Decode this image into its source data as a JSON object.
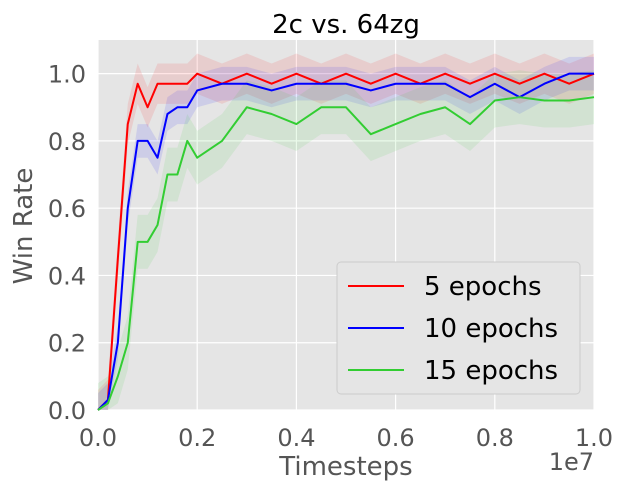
{
  "chart_data": {
    "type": "line",
    "title": "2c vs. 64zg",
    "xlabel": "Timesteps",
    "ylabel": "Win Rate",
    "x_offset_label": "1e7",
    "xlim": [
      0.0,
      1.0
    ],
    "ylim": [
      0.0,
      1.1
    ],
    "xticks": [
      "0.0",
      "0.2",
      "0.4",
      "0.6",
      "0.8",
      "1.0"
    ],
    "yticks": [
      "0.0",
      "0.2",
      "0.4",
      "0.6",
      "0.8",
      "1.0"
    ],
    "grid": true,
    "legend_position": "lower-right",
    "series": [
      {
        "name": "5 epochs",
        "color": "#ff0000",
        "x": [
          0.0,
          0.02,
          0.04,
          0.06,
          0.08,
          0.1,
          0.12,
          0.14,
          0.16,
          0.18,
          0.2,
          0.25,
          0.3,
          0.35,
          0.4,
          0.45,
          0.5,
          0.55,
          0.6,
          0.65,
          0.7,
          0.75,
          0.8,
          0.85,
          0.9,
          0.95,
          1.0
        ],
        "values": [
          0.0,
          0.03,
          0.45,
          0.85,
          0.97,
          0.9,
          0.97,
          0.97,
          0.97,
          0.97,
          1.0,
          0.97,
          1.0,
          0.97,
          1.0,
          0.97,
          1.0,
          0.97,
          1.0,
          0.97,
          1.0,
          0.97,
          1.0,
          0.97,
          1.0,
          0.97,
          1.0
        ]
      },
      {
        "name": "10 epochs",
        "color": "#0000ff",
        "x": [
          0.0,
          0.02,
          0.04,
          0.06,
          0.08,
          0.1,
          0.12,
          0.14,
          0.16,
          0.18,
          0.2,
          0.25,
          0.3,
          0.35,
          0.4,
          0.45,
          0.5,
          0.55,
          0.6,
          0.65,
          0.7,
          0.75,
          0.8,
          0.85,
          0.9,
          0.95,
          1.0
        ],
        "values": [
          0.0,
          0.03,
          0.2,
          0.6,
          0.8,
          0.8,
          0.75,
          0.88,
          0.9,
          0.9,
          0.95,
          0.97,
          0.97,
          0.95,
          0.97,
          0.97,
          0.97,
          0.95,
          0.97,
          0.97,
          0.97,
          0.93,
          0.97,
          0.93,
          0.97,
          1.0,
          1.0
        ]
      },
      {
        "name": "15 epochs",
        "color": "#32cd32",
        "x": [
          0.0,
          0.02,
          0.04,
          0.06,
          0.08,
          0.1,
          0.12,
          0.14,
          0.16,
          0.18,
          0.2,
          0.25,
          0.3,
          0.35,
          0.4,
          0.45,
          0.5,
          0.55,
          0.6,
          0.65,
          0.7,
          0.75,
          0.8,
          0.85,
          0.9,
          0.95,
          1.0
        ],
        "values": [
          0.0,
          0.02,
          0.1,
          0.2,
          0.5,
          0.5,
          0.55,
          0.7,
          0.7,
          0.8,
          0.75,
          0.8,
          0.9,
          0.88,
          0.85,
          0.9,
          0.9,
          0.82,
          0.85,
          0.88,
          0.9,
          0.85,
          0.92,
          0.93,
          0.92,
          0.92,
          0.93
        ]
      }
    ]
  }
}
